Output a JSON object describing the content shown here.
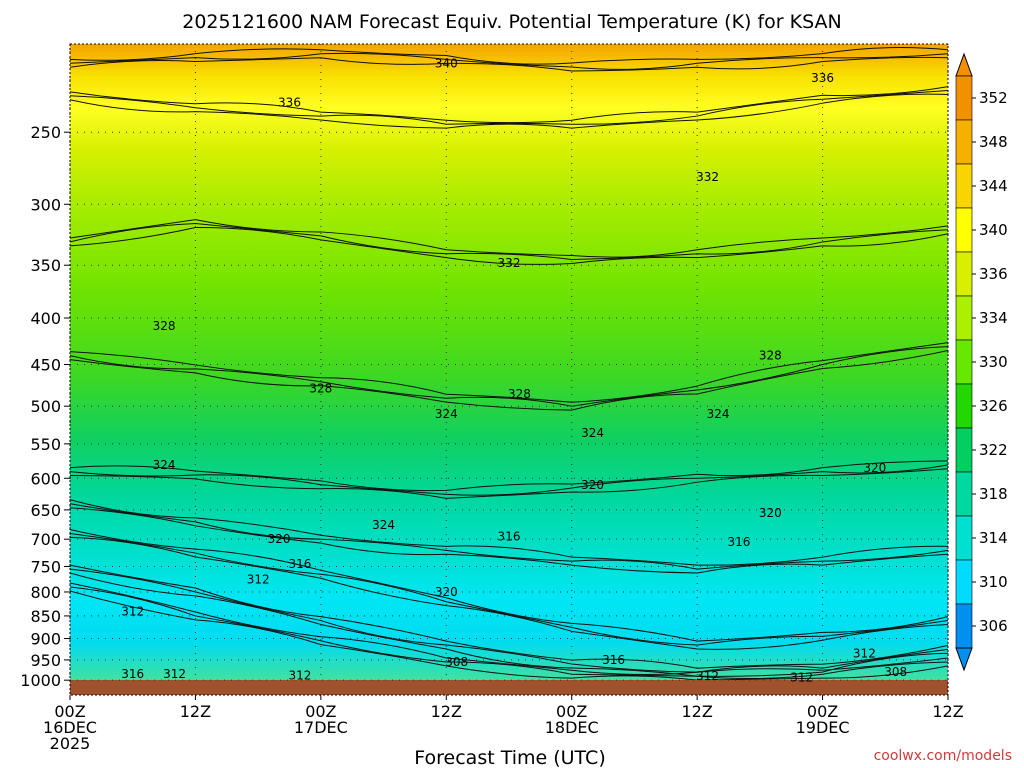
{
  "chart_data": {
    "type": "heatmap",
    "title": "2025121600 NAM Forecast Equiv. Potential Temperature (K) for KSAN",
    "xlabel": "Forecast Time (UTC)",
    "ylabel": "",
    "x_ticks": [
      {
        "hour": 0,
        "label": [
          "00Z",
          "16DEC",
          "2025"
        ]
      },
      {
        "hour": 12,
        "label": [
          "12Z"
        ]
      },
      {
        "hour": 24,
        "label": [
          "00Z",
          "17DEC"
        ]
      },
      {
        "hour": 36,
        "label": [
          "12Z"
        ]
      },
      {
        "hour": 48,
        "label": [
          "00Z",
          "18DEC"
        ]
      },
      {
        "hour": 60,
        "label": [
          "12Z"
        ]
      },
      {
        "hour": 72,
        "label": [
          "00Z",
          "19DEC"
        ]
      },
      {
        "hour": 84,
        "label": [
          "12Z"
        ]
      }
    ],
    "xlim_hours": [
      0,
      84
    ],
    "y_ticks": [
      250,
      300,
      350,
      400,
      450,
      500,
      550,
      600,
      650,
      700,
      750,
      800,
      850,
      900,
      950,
      1000
    ],
    "ylim_hPa": [
      200,
      1020
    ],
    "y_scale": "log-pressure",
    "grid": "dotted",
    "colorbar": {
      "labels": [
        352,
        348,
        344,
        340,
        336,
        334,
        330,
        326,
        322,
        318,
        314,
        310,
        306
      ],
      "colors": [
        "#f39000",
        "#f6b000",
        "#f8d400",
        "#ffff00",
        "#d8f000",
        "#aaf000",
        "#66e800",
        "#22d800",
        "#00d060",
        "#00d8a0",
        "#00e0d0",
        "#00dcff",
        "#0090f0"
      ],
      "placement": "right"
    },
    "ground_color": "#a0522d",
    "profile_hours": [
      0,
      12,
      24,
      36,
      48,
      60,
      72,
      84
    ],
    "series": [
      {
        "level": 310,
        "values": [
          790,
          850,
          905,
          955,
          985,
          990,
          985,
          955
        ]
      },
      {
        "level": 312,
        "values": [
          755,
          800,
          860,
          915,
          960,
          980,
          970,
          925
        ]
      },
      {
        "level": 316,
        "values": [
          690,
          725,
          765,
          820,
          875,
          915,
          895,
          860
        ]
      },
      {
        "level": 320,
        "values": [
          640,
          670,
          700,
          720,
          740,
          755,
          740,
          720
        ]
      },
      {
        "level": 324,
        "values": [
          590,
          595,
          610,
          625,
          615,
          600,
          590,
          580
        ]
      },
      {
        "level": 328,
        "values": [
          440,
          455,
          470,
          490,
          500,
          480,
          450,
          430
        ]
      },
      {
        "level": 332,
        "values": [
          330,
          315,
          325,
          340,
          345,
          340,
          330,
          320
        ]
      },
      {
        "level": 336,
        "values": [
          228,
          235,
          240,
          245,
          245,
          240,
          230,
          225
        ]
      },
      {
        "level": 340,
        "values": [
          210,
          207,
          205,
          208,
          212,
          210,
          207,
          205
        ]
      }
    ],
    "contour_labels": [
      {
        "text": "340",
        "hour": 36,
        "p": 210
      },
      {
        "text": "336",
        "hour": 21,
        "p": 232
      },
      {
        "text": "336",
        "hour": 72,
        "p": 218
      },
      {
        "text": "332",
        "hour": 61,
        "p": 280
      },
      {
        "text": "332",
        "hour": 42,
        "p": 348
      },
      {
        "text": "328",
        "hour": 9,
        "p": 408
      },
      {
        "text": "328",
        "hour": 24,
        "p": 478
      },
      {
        "text": "328",
        "hour": 43,
        "p": 485
      },
      {
        "text": "328",
        "hour": 67,
        "p": 440
      },
      {
        "text": "324",
        "hour": 9,
        "p": 580
      },
      {
        "text": "324",
        "hour": 36,
        "p": 510
      },
      {
        "text": "324",
        "hour": 50,
        "p": 535
      },
      {
        "text": "324",
        "hour": 62,
        "p": 510
      },
      {
        "text": "324",
        "hour": 30,
        "p": 675
      },
      {
        "text": "320",
        "hour": 50,
        "p": 610
      },
      {
        "text": "320",
        "hour": 67,
        "p": 655
      },
      {
        "text": "320",
        "hour": 77,
        "p": 585
      },
      {
        "text": "320",
        "hour": 20,
        "p": 700
      },
      {
        "text": "320",
        "hour": 36,
        "p": 800
      },
      {
        "text": "316",
        "hour": 22,
        "p": 745
      },
      {
        "text": "316",
        "hour": 42,
        "p": 695
      },
      {
        "text": "316",
        "hour": 64,
        "p": 705
      },
      {
        "text": "316",
        "hour": 52,
        "p": 950
      },
      {
        "text": "316",
        "hour": 6,
        "p": 985
      },
      {
        "text": "312",
        "hour": 18,
        "p": 775
      },
      {
        "text": "312",
        "hour": 6,
        "p": 840
      },
      {
        "text": "312",
        "hour": 10,
        "p": 985
      },
      {
        "text": "312",
        "hour": 22,
        "p": 988
      },
      {
        "text": "312",
        "hour": 61,
        "p": 990
      },
      {
        "text": "312",
        "hour": 70,
        "p": 993
      },
      {
        "text": "312",
        "hour": 76,
        "p": 935
      },
      {
        "text": "308",
        "hour": 37,
        "p": 955
      },
      {
        "text": "308",
        "hour": 79,
        "p": 980
      }
    ],
    "credit": "coolwx.com/models"
  }
}
